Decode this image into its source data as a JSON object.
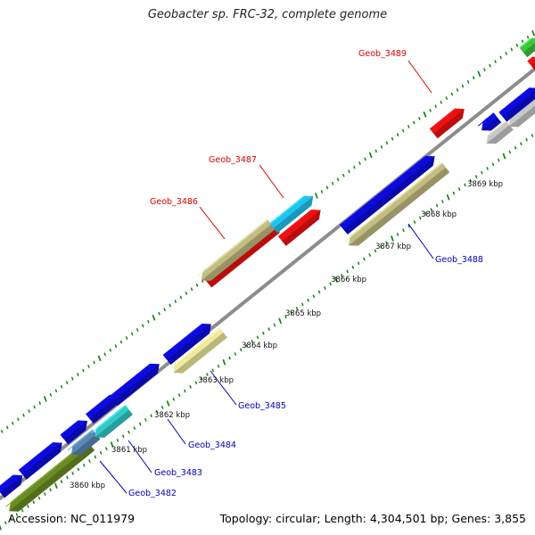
{
  "title": "Geobacter sp. FRC-32, complete genome",
  "footer": {
    "accession": "Accession: NC_011979",
    "summary": "Topology: circular; Length: 4,304,501 bp; Genes: 3,855"
  },
  "ticks": [
    "3860 kbp",
    "3861 kbp",
    "3862 kbp",
    "3863 kbp",
    "3864 kbp",
    "3865 kbp",
    "3866 kbp",
    "3867 kbp",
    "3868 kbp",
    "3869 kbp"
  ],
  "gene_labels_forward": [
    "Geob_3486",
    "Geob_3487",
    "Geob_3489"
  ],
  "gene_labels_reverse": [
    "Geob_3482",
    "Geob_3483",
    "Geob_3484",
    "Geob_3485",
    "Geob_3488"
  ],
  "colors": {
    "backbone": "#8c8c8c",
    "dotted_ring": "#1a8a1a",
    "forward_label": "#dd0000",
    "reverse_label": "#0000bb",
    "blue": "#0b0bdd",
    "red": "#ee1111",
    "cyan": "#22c4ee",
    "khaki": "#c2bd82",
    "pale_yellow": "#efea9e",
    "teal": "#33c9c9",
    "olive": "#6b8c24",
    "steel": "#5a88b4",
    "gray": "#c8c8c8",
    "green": "#3cc83c"
  }
}
